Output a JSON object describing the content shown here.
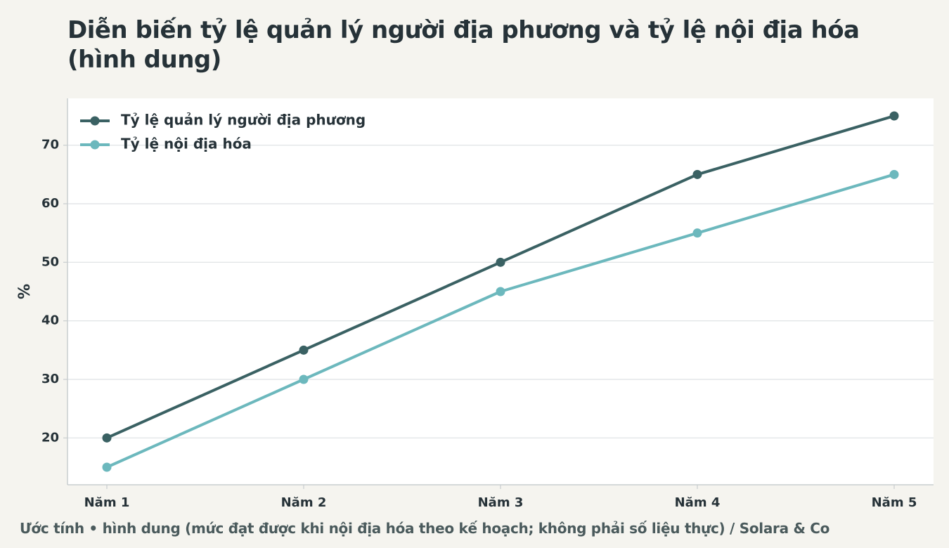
{
  "chart_data": {
    "type": "line",
    "title": "Diễn biến tỷ lệ quản lý người địa phương và tỷ lệ nội địa hóa (hình dung)",
    "y_label": "%",
    "note": "Ước tính • hình dung (mức đạt được khi nội địa hóa theo kế hoạch; không phải số liệu thực) / Solara & Co",
    "categories": [
      "Năm 1",
      "Năm 2",
      "Năm 3",
      "Năm 4",
      "Năm 5"
    ],
    "series": [
      {
        "name": "Tỷ lệ quản lý người địa phương",
        "color": "#3a6163",
        "values": [
          20,
          35,
          50,
          65,
          75
        ]
      },
      {
        "name": "Tỷ lệ nội địa hóa",
        "color": "#6cb8bd",
        "values": [
          15,
          30,
          45,
          55,
          65
        ]
      }
    ],
    "ylim": [
      12,
      78
    ],
    "yticks": [
      20,
      30,
      40,
      50,
      60,
      70
    ],
    "grid": true,
    "legend": "upper-left"
  }
}
